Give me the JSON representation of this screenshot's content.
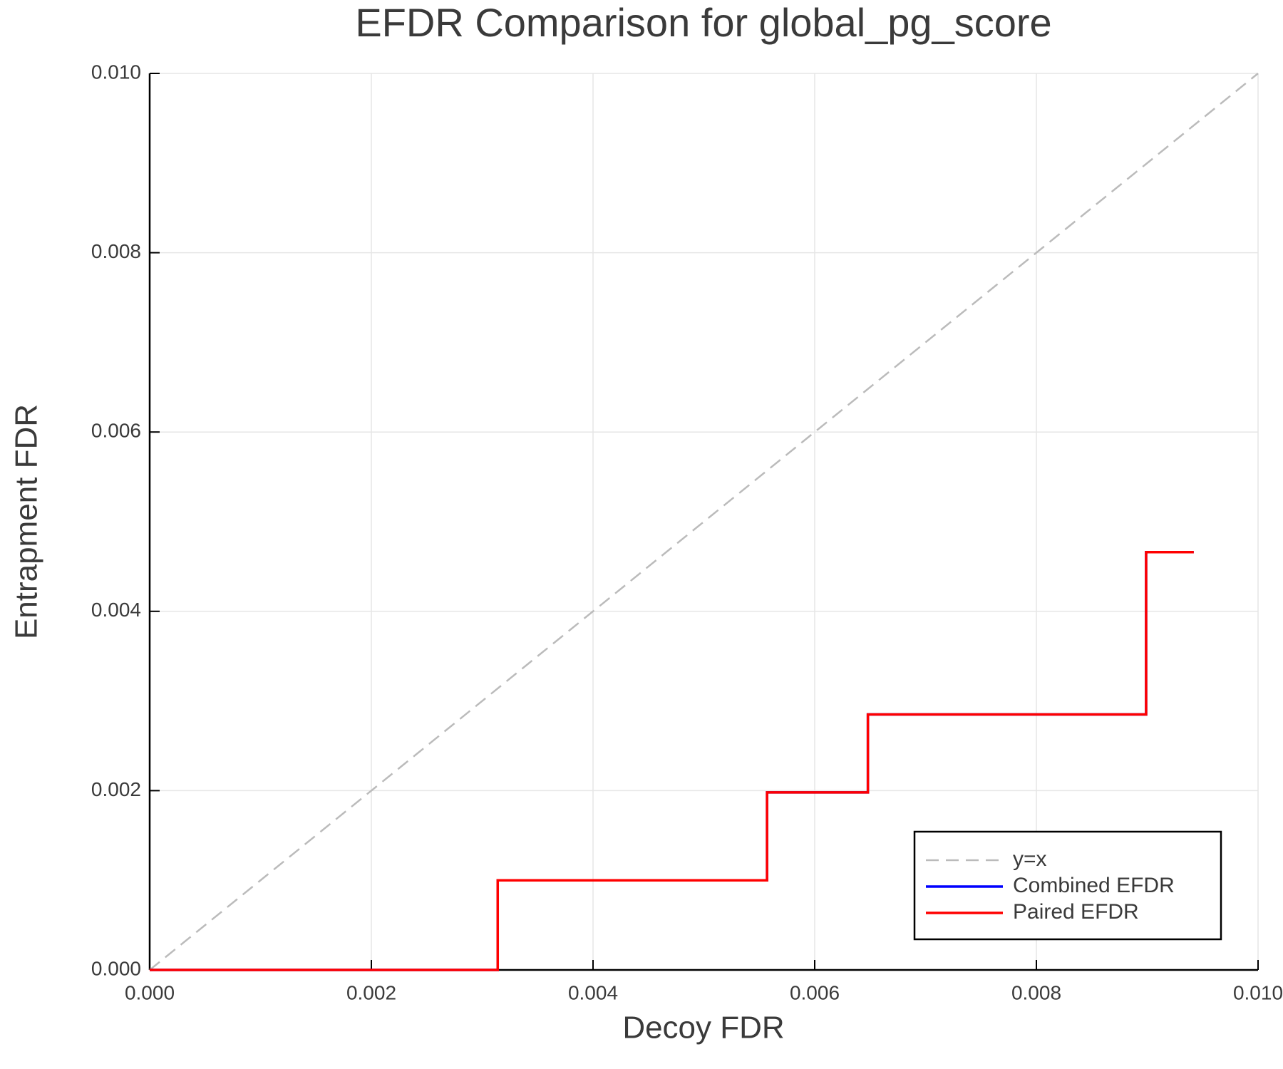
{
  "chart_data": {
    "type": "line",
    "title": "EFDR Comparison for global_pg_score",
    "xlabel": "Decoy FDR",
    "ylabel": "Entrapment FDR",
    "xlim": [
      0,
      0.01
    ],
    "ylim": [
      0,
      0.01
    ],
    "xticks": [
      {
        "value": 0,
        "label": "0.000"
      },
      {
        "value": 0.002,
        "label": "0.002"
      },
      {
        "value": 0.004,
        "label": "0.004"
      },
      {
        "value": 0.006,
        "label": "0.006"
      },
      {
        "value": 0.008,
        "label": "0.008"
      },
      {
        "value": 0.01,
        "label": "0.010"
      }
    ],
    "yticks": [
      {
        "value": 0,
        "label": "0.000"
      },
      {
        "value": 0.002,
        "label": "0.002"
      },
      {
        "value": 0.004,
        "label": "0.004"
      },
      {
        "value": 0.006,
        "label": "0.006"
      },
      {
        "value": 0.008,
        "label": "0.008"
      },
      {
        "value": 0.01,
        "label": "0.010"
      }
    ],
    "grid": true,
    "legend": "lower right",
    "series": [
      {
        "name": "y=x",
        "color": "#bbbbbb",
        "dashed": true,
        "x": [
          0,
          0.01
        ],
        "values": [
          0,
          0.01
        ]
      },
      {
        "name": "Combined EFDR",
        "color": "#0000ff",
        "x": [
          0,
          0.00314,
          0.00314,
          0.00557,
          0.00557,
          0.00648,
          0.00648,
          0.00899,
          0.00899,
          0.00942
        ],
        "values": [
          0,
          0,
          0.001,
          0.001,
          0.00198,
          0.00198,
          0.00285,
          0.00285,
          0.00466,
          0.00466
        ]
      },
      {
        "name": "Paired EFDR",
        "color": "#ff0000",
        "x": [
          0,
          0.00314,
          0.00314,
          0.00557,
          0.00557,
          0.00648,
          0.00648,
          0.00899,
          0.00899,
          0.00942
        ],
        "values": [
          0,
          0,
          0.001,
          0.001,
          0.00198,
          0.00198,
          0.00285,
          0.00285,
          0.00466,
          0.00466
        ]
      }
    ]
  }
}
